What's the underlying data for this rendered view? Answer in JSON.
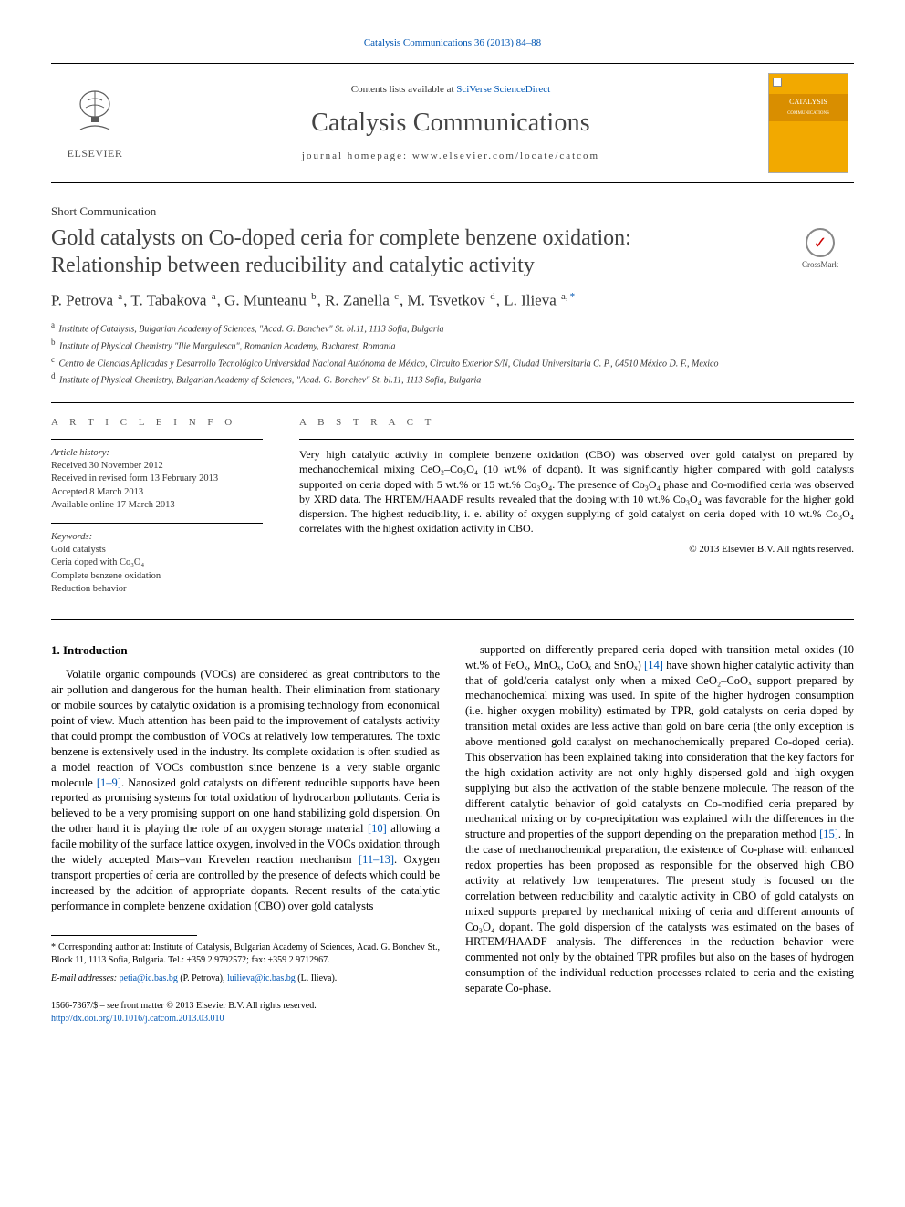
{
  "journal_ref": "Catalysis Communications 36 (2013) 84–88",
  "header": {
    "contents_prefix": "Contents lists available at ",
    "contents_link": "SciVerse ScienceDirect",
    "journal_title": "Catalysis Communications",
    "homepage_prefix": "journal homepage: ",
    "homepage": "www.elsevier.com/locate/catcom",
    "publisher_name": "ELSEVIER",
    "cover_label": "CATALYSIS",
    "cover_sub": "COMMUNICATIONS"
  },
  "crossmark": {
    "label": "CrossMark",
    "glyph": "✓"
  },
  "article_type": "Short Communication",
  "title_line1": "Gold catalysts on Co-doped ceria for complete benzene oxidation:",
  "title_line2": "Relationship between reducibility and catalytic activity",
  "authors_html": "P. Petrova <sup>a</sup>, T. Tabakova <sup>a</sup>, G. Munteanu <sup>b</sup>, R. Zanella <sup>c</sup>, M. Tsvetkov <sup>d</sup>, L. Ilieva <sup>a,</sup><sup class='corr'>*</sup>",
  "affiliations": [
    {
      "sup": "a",
      "text": "Institute of Catalysis, Bulgarian Academy of Sciences, \"Acad. G. Bonchev\" St. bl.11, 1113 Sofia, Bulgaria"
    },
    {
      "sup": "b",
      "text": "Institute of Physical Chemistry \"Ilie Murgulescu\", Romanian Academy, Bucharest, Romania"
    },
    {
      "sup": "c",
      "text": "Centro de Ciencias Aplicadas y Desarrollo Tecnológico Universidad Nacional Autónoma de México, Circuito Exterior S/N, Ciudad Universitaria C. P., 04510 México D. F., Mexico"
    },
    {
      "sup": "d",
      "text": "Institute of Physical Chemistry, Bulgarian Academy of Sciences, \"Acad. G. Bonchev\" St. bl.11, 1113 Sofia, Bulgaria"
    }
  ],
  "article_info_head": "A R T I C L E   I N F O",
  "abstract_head": "A B S T R A C T",
  "history_label": "Article history:",
  "history": [
    "Received 30 November 2012",
    "Received in revised form 13 February 2013",
    "Accepted 8 March 2013",
    "Available online 17 March 2013"
  ],
  "keywords_label": "Keywords:",
  "keywords": [
    "Gold catalysts",
    "Ceria doped with Co₃O₄",
    "Complete benzene oxidation",
    "Reduction behavior"
  ],
  "abstract": "Very high catalytic activity in complete benzene oxidation (CBO) was observed over gold catalyst on prepared by mechanochemical mixing CeO₂–Co₃O₄ (10 wt.% of dopant). It was significantly higher compared with gold catalysts supported on ceria doped with 5 wt.% or 15 wt.% Co₃O₄. The presence of Co₃O₄ phase and Co-modified ceria was observed by XRD data. The HRTEM/HAADF results revealed that the doping with 10 wt.% Co₃O₄ was favorable for the higher gold dispersion. The highest reducibility, i. e. ability of oxygen supplying of gold catalyst on ceria doped with 10 wt.% Co₃O₄ correlates with the highest oxidation activity in CBO.",
  "copyright": "© 2013 Elsevier B.V. All rights reserved.",
  "section1_heading": "1. Introduction",
  "col_left": "Volatile organic compounds (VOCs) are considered as great contributors to the air pollution and dangerous for the human health. Their elimination from stationary or mobile sources by catalytic oxidation is a promising technology from economical point of view. Much attention has been paid to the improvement of catalysts activity that could prompt the combustion of VOCs at relatively low temperatures. The toxic benzene is extensively used in the industry. Its complete oxidation is often studied as a model reaction of VOCs combustion since benzene is a very stable organic molecule [1–9]. Nanosized gold catalysts on different reducible supports have been reported as promising systems for total oxidation of hydrocarbon pollutants. Ceria is believed to be a very promising support on one hand stabilizing gold dispersion. On the other hand it is playing the role of an oxygen storage material [10] allowing a facile mobility of the surface lattice oxygen, involved in the VOCs oxidation through the widely accepted Mars–van Krevelen reaction mechanism [11–13]. Oxygen transport properties of ceria are controlled by the presence of defects which could be increased by the addition of appropriate dopants. Recent results of the catalytic performance in complete benzene oxidation (CBO) over gold catalysts",
  "col_left_refs": {
    "r1": "[1–9]",
    "r2": "[10]",
    "r3": "[11–13]"
  },
  "col_right": "supported on differently prepared ceria doped with transition metal oxides (10 wt.% of FeOₓ, MnOₓ, CoOₓ and SnOₓ) [14] have shown higher catalytic activity than that of gold/ceria catalyst only when a mixed CeO₂–CoOₓ support prepared by mechanochemical mixing was used. In spite of the higher hydrogen consumption (i.e. higher oxygen mobility) estimated by TPR, gold catalysts on ceria doped by transition metal oxides are less active than gold on bare ceria (the only exception is above mentioned gold catalyst on mechanochemically prepared Co-doped ceria). This observation has been explained taking into consideration that the key factors for the high oxidation activity are not only highly dispersed gold and high oxygen supplying but also the activation of the stable benzene molecule. The reason of the different catalytic behavior of gold catalysts on Co-modified ceria prepared by mechanical mixing or by co-precipitation was explained with the differences in the structure and properties of the support depending on the preparation method [15]. In the case of mechanochemical preparation, the existence of Co-phase with enhanced redox properties has been proposed as responsible for the observed high CBO activity at relatively low temperatures. The present study is focused on the correlation between reducibility and catalytic activity in CBO of gold catalysts on mixed supports prepared by mechanical mixing of ceria and different amounts of Co₃O₄ dopant. The gold dispersion of the catalysts was estimated on the bases of HRTEM/HAADF analysis. The differences in the reduction behavior were commented not only by the obtained TPR profiles but also on the bases of hydrogen consumption of the individual reduction processes related to ceria and the existing separate Co-phase.",
  "col_right_refs": {
    "r1": "[14]",
    "r2": "[15]"
  },
  "corresponding": {
    "star": "*",
    "text": "Corresponding author at: Institute of Catalysis, Bulgarian Academy of Sciences, Acad. G. Bonchev St., Block 11, 1113 Sofia, Bulgaria. Tel.: +359 2 9792572; fax: +359 2 9712967."
  },
  "email_label": "E-mail addresses: ",
  "emails": [
    {
      "addr": "petia@ic.bas.bg",
      "who": " (P. Petrova), "
    },
    {
      "addr": "luilieva@ic.bas.bg",
      "who": " (L. Ilieva)."
    }
  ],
  "front_matter": "1566-7367/$ – see front matter © 2013 Elsevier B.V. All rights reserved.",
  "doi": "http://dx.doi.org/10.1016/j.catcom.2013.03.010",
  "colors": {
    "link": "#0056b3",
    "pub_orange": "#e77817",
    "cover_bg": "#f2a900",
    "cover_band": "#d98e00",
    "text_dark": "#333333",
    "heading_gray": "#424242"
  },
  "typography": {
    "body_pt": 12.5,
    "title_pt": 24,
    "journal_title_pt": 28,
    "authors_pt": 17,
    "affil_pt": 10,
    "footnote_pt": 10
  }
}
